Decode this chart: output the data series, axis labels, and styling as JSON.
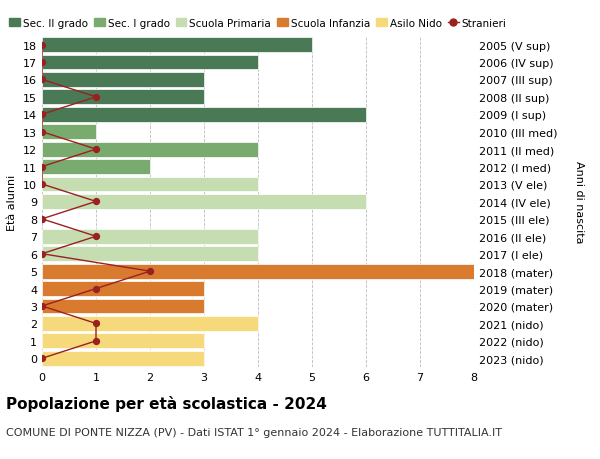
{
  "ages": [
    18,
    17,
    16,
    15,
    14,
    13,
    12,
    11,
    10,
    9,
    8,
    7,
    6,
    5,
    4,
    3,
    2,
    1,
    0
  ],
  "years": [
    "2005 (V sup)",
    "2006 (IV sup)",
    "2007 (III sup)",
    "2008 (II sup)",
    "2009 (I sup)",
    "2010 (III med)",
    "2011 (II med)",
    "2012 (I med)",
    "2013 (V ele)",
    "2014 (IV ele)",
    "2015 (III ele)",
    "2016 (II ele)",
    "2017 (I ele)",
    "2018 (mater)",
    "2019 (mater)",
    "2020 (mater)",
    "2021 (nido)",
    "2022 (nido)",
    "2023 (nido)"
  ],
  "bar_values": [
    5,
    4,
    3,
    3,
    6,
    1,
    4,
    2,
    4,
    6,
    0,
    4,
    4,
    8,
    3,
    3,
    4,
    3,
    3
  ],
  "bar_colors": [
    "#4a7a55",
    "#4a7a55",
    "#4a7a55",
    "#4a7a55",
    "#4a7a55",
    "#7aab6e",
    "#7aab6e",
    "#7aab6e",
    "#c5ddb0",
    "#c5ddb0",
    "#c5ddb0",
    "#c5ddb0",
    "#c5ddb0",
    "#d97b2e",
    "#d97b2e",
    "#d97b2e",
    "#f5d97a",
    "#f5d97a",
    "#f5d97a"
  ],
  "stranieri": [
    0,
    0,
    0,
    1,
    0,
    0,
    1,
    0,
    0,
    1,
    0,
    1,
    0,
    2,
    1,
    0,
    1,
    1,
    0
  ],
  "stranieri_color": "#9b2020",
  "xlim": [
    0,
    8
  ],
  "ylim": [
    -0.5,
    18.5
  ],
  "ylabel": "Età alunni",
  "right_ylabel": "Anni di nascita",
  "title": "Popolazione per età scolastica - 2024",
  "subtitle": "COMUNE DI PONTE NIZZA (PV) - Dati ISTAT 1° gennaio 2024 - Elaborazione TUTTITALIA.IT",
  "legend_labels": [
    "Sec. II grado",
    "Sec. I grado",
    "Scuola Primaria",
    "Scuola Infanzia",
    "Asilo Nido",
    "Stranieri"
  ],
  "legend_colors": [
    "#4a7a55",
    "#7aab6e",
    "#c5ddb0",
    "#d97b2e",
    "#f5d97a",
    "#9b2020"
  ],
  "grid_color": "#bbbbbb",
  "bg_color": "#ffffff",
  "bar_height": 0.85,
  "title_fontsize": 11,
  "subtitle_fontsize": 8,
  "tick_fontsize": 8,
  "label_fontsize": 8,
  "legend_fontsize": 7.5
}
